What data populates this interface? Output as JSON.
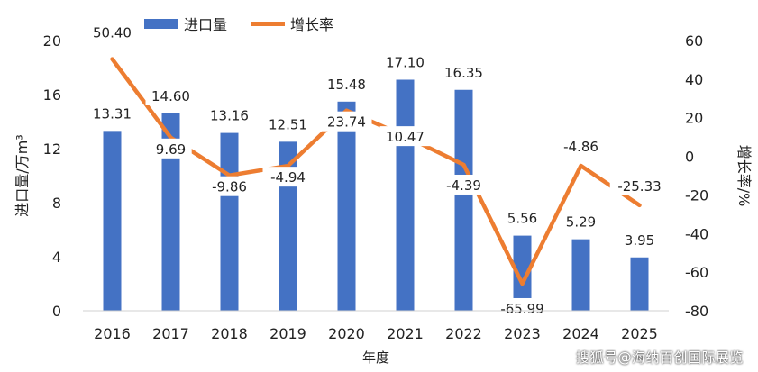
{
  "chart_data": {
    "type": "bar",
    "categories": [
      "2016",
      "2017",
      "2018",
      "2019",
      "2020",
      "2021",
      "2022",
      "2023",
      "2024",
      "2025"
    ],
    "series": [
      {
        "name": "进口量",
        "type": "bar",
        "axis": "left",
        "color": "#4472C4",
        "values": [
          13.31,
          14.6,
          13.16,
          12.51,
          15.48,
          17.1,
          16.35,
          5.56,
          5.29,
          3.95
        ]
      },
      {
        "name": "增长率",
        "type": "line",
        "axis": "right",
        "color": "#ED7D31",
        "values": [
          50.4,
          9.69,
          -9.86,
          -4.94,
          23.74,
          10.47,
          -4.39,
          -65.99,
          -4.86,
          -25.33
        ]
      }
    ],
    "bar_labels": [
      "13.31",
      "14.60",
      "13.16",
      "12.51",
      "15.48",
      "17.10",
      "16.35",
      "5.56",
      "5.29",
      "3.95"
    ],
    "line_labels": [
      "50.40",
      "9.69",
      "-9.86",
      "-4.94",
      "23.74",
      "10.47",
      "-4.39",
      "-65.99",
      "-4.86",
      "-25.33"
    ],
    "xlabel": "年度",
    "ylabel_left": "进口量/万m³",
    "ylabel_right": "增长率/%",
    "ylim_left": [
      0,
      20
    ],
    "yticks_left": [
      "0",
      "4",
      "8",
      "12",
      "16",
      "20"
    ],
    "ylim_right": [
      -80,
      60
    ],
    "yticks_right": [
      "-80",
      "-60",
      "-40",
      "-20",
      "0",
      "20",
      "40",
      "60"
    ],
    "legend_position": "top-left",
    "grid": false
  },
  "watermark": "搜狐号@海纳百创国际展览"
}
